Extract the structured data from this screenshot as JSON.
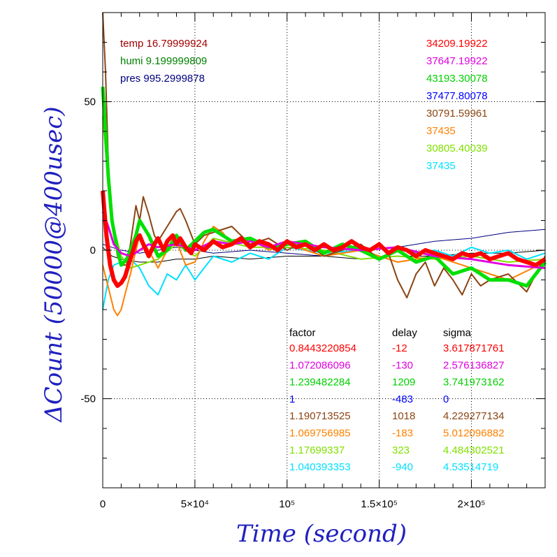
{
  "chart_data": {
    "type": "line",
    "xlabel": "Time (second)",
    "ylabel": "ΔCount (50000@400usec)",
    "xlim": [
      0,
      240000
    ],
    "ylim": [
      -80,
      80
    ],
    "grid": true,
    "x_ticks": [
      {
        "value": 0,
        "label": "0"
      },
      {
        "value": 50000,
        "label": "5×10⁴"
      },
      {
        "value": 100000,
        "label": "10⁵"
      },
      {
        "value": 150000,
        "label": "1.5×10⁵"
      },
      {
        "value": 200000,
        "label": "2×10⁵"
      }
    ],
    "y_ticks": [
      {
        "value": 50,
        "label": "50"
      },
      {
        "value": 0,
        "label": "0"
      },
      {
        "value": -50,
        "label": "-50"
      }
    ],
    "env_labels": [
      {
        "text": "temp 16.79999924",
        "color": "#a00000"
      },
      {
        "text": "humi 9.199999809",
        "color": "#008000"
      },
      {
        "text": "pres 995.2999878",
        "color": "#000080"
      }
    ],
    "count_labels": [
      {
        "text": "34209.19922",
        "color": "#ff0000"
      },
      {
        "text": "37647.19922",
        "color": "#e000e0"
      },
      {
        "text": "43193.30078",
        "color": "#00d000"
      },
      {
        "text": "37477.80078",
        "color": "#0000ff"
      },
      {
        "text": "30791.59961",
        "color": "#8b4513"
      },
      {
        "text": "37435",
        "color": "#ff8000"
      },
      {
        "text": "30805.40039",
        "color": "#80e000"
      },
      {
        "text": "37435",
        "color": "#00e0ff"
      }
    ],
    "table_headers": {
      "factor": "factor",
      "delay": "delay",
      "sigma": "sigma"
    },
    "table_rows": [
      {
        "factor": "0.8443220854",
        "delay": "-12",
        "sigma": "3.617871761",
        "color": "#ff0000"
      },
      {
        "factor": "1.072086096",
        "delay": "-130",
        "sigma": "2.576136827",
        "color": "#e000e0"
      },
      {
        "factor": "1.239482284",
        "delay": "1209",
        "sigma": "3.741973162",
        "color": "#00d000"
      },
      {
        "factor": "1",
        "delay": "-483",
        "sigma": "0",
        "color": "#0000ff"
      },
      {
        "factor": "1.190713525",
        "delay": "1018",
        "sigma": "4.229277134",
        "color": "#8b4513"
      },
      {
        "factor": "1.069756985",
        "delay": "-183",
        "sigma": "5.012096882",
        "color": "#ff8000"
      },
      {
        "factor": "1.17699337",
        "delay": "323",
        "sigma": "4.484302521",
        "color": "#80e000"
      },
      {
        "factor": "1.040393353",
        "delay": "-940",
        "sigma": "4.53514719",
        "color": "#00e0ff"
      }
    ],
    "series": [
      {
        "color": "#000000",
        "width": 1,
        "x": [
          0,
          5000,
          10000,
          20000,
          30000,
          40000,
          50000,
          60000,
          80000,
          100000,
          120000,
          140000,
          160000,
          180000,
          200000,
          220000,
          240000
        ],
        "y": [
          1,
          -2,
          -3,
          -4,
          -4,
          -3,
          -3,
          -2,
          -3,
          -2,
          -2,
          -3,
          -2,
          -2,
          -1,
          -1,
          0
        ]
      },
      {
        "color": "#000080",
        "width": 1,
        "x": [
          0,
          5000,
          10000,
          20000,
          30000,
          40000,
          60000,
          80000,
          100000,
          120000,
          140000,
          160000,
          180000,
          200000,
          220000,
          240000
        ],
        "y": [
          2,
          1,
          0,
          -1,
          0,
          1,
          -1,
          0,
          -1,
          -2,
          0,
          1,
          3,
          4,
          6,
          7
        ]
      },
      {
        "color": "#00e0ff",
        "width": 2,
        "x": [
          0,
          3000,
          6000,
          10000,
          15000,
          20000,
          25000,
          30000,
          35000,
          40000,
          45000,
          50000,
          55000,
          60000,
          70000,
          80000,
          90000,
          100000,
          120000,
          140000,
          160000,
          170000,
          180000,
          190000,
          200000,
          210000,
          220000,
          230000,
          240000
        ],
        "y": [
          -20,
          -10,
          -5,
          -4,
          -3,
          -6,
          -12,
          -15,
          -8,
          -10,
          -5,
          -10,
          -6,
          -2,
          -4,
          -1,
          -3,
          1,
          -1,
          0,
          1,
          -1,
          0,
          -2,
          1,
          -1,
          0,
          -3,
          -1
        ]
      },
      {
        "color": "#80e000",
        "width": 2,
        "x": [
          0,
          2000,
          5000,
          10000,
          15000,
          20000,
          30000,
          40000,
          50000,
          60000,
          80000,
          100000,
          120000,
          140000,
          160000,
          180000,
          200000,
          220000,
          240000
        ],
        "y": [
          45,
          30,
          10,
          -2,
          -6,
          -5,
          -3,
          2,
          -2,
          4,
          1,
          1,
          0,
          -3,
          -2,
          -3,
          -2,
          -4,
          -3
        ]
      },
      {
        "color": "#ff8000",
        "width": 2,
        "x": [
          0,
          2000,
          4000,
          6000,
          8000,
          10000,
          12000,
          15000,
          18000,
          20000,
          25000,
          30000,
          35000,
          40000,
          45000,
          50000,
          55000,
          60000,
          65000,
          70000,
          80000,
          90000,
          100000,
          120000,
          140000,
          160000,
          180000,
          200000,
          220000,
          240000
        ],
        "y": [
          -5,
          -10,
          -15,
          -20,
          -22,
          -20,
          -15,
          -8,
          0,
          5,
          0,
          -6,
          0,
          3,
          -5,
          -4,
          3,
          8,
          6,
          2,
          4,
          0,
          2,
          -2,
          0,
          -4,
          -2,
          -6,
          -10,
          -4
        ]
      },
      {
        "color": "#8b4513",
        "width": 2,
        "x": [
          0,
          1500,
          3000,
          5000,
          8000,
          10000,
          13000,
          15000,
          18000,
          20000,
          22000,
          25000,
          28000,
          30000,
          35000,
          40000,
          42000,
          45000,
          50000,
          55000,
          60000,
          70000,
          80000,
          90000,
          100000,
          110000,
          120000,
          130000,
          140000,
          150000,
          155000,
          160000,
          165000,
          170000,
          175000,
          180000,
          185000,
          190000,
          195000,
          200000,
          205000,
          210000,
          220000,
          230000,
          240000
        ],
        "y": [
          80,
          60,
          30,
          10,
          -2,
          -5,
          -5,
          2,
          15,
          10,
          18,
          12,
          5,
          3,
          8,
          13,
          14,
          10,
          2,
          5,
          6,
          8,
          2,
          4,
          0,
          3,
          -2,
          0,
          2,
          -3,
          -1,
          -10,
          -16,
          -8,
          -4,
          -12,
          -6,
          -10,
          -15,
          -8,
          -12,
          -10,
          -8,
          -14,
          -2
        ]
      },
      {
        "color": "#00e000",
        "width": 5,
        "x": [
          0,
          1500,
          3000,
          5000,
          8000,
          10000,
          13000,
          15000,
          18000,
          20000,
          25000,
          30000,
          35000,
          40000,
          45000,
          50000,
          55000,
          60000,
          70000,
          80000,
          90000,
          100000,
          110000,
          120000,
          130000,
          140000,
          150000,
          160000,
          170000,
          180000,
          190000,
          200000,
          210000,
          220000,
          230000,
          240000
        ],
        "y": [
          55,
          40,
          25,
          10,
          0,
          -5,
          -3,
          0,
          5,
          10,
          5,
          -2,
          0,
          5,
          0,
          3,
          6,
          7,
          3,
          4,
          1,
          2,
          3,
          -1,
          2,
          0,
          -3,
          0,
          -4,
          -2,
          -8,
          -6,
          -10,
          -10,
          -12,
          -4
        ]
      },
      {
        "color": "#e000e0",
        "width": 3,
        "x": [
          0,
          3000,
          6000,
          10000,
          15000,
          20000,
          25000,
          30000,
          40000,
          50000,
          60000,
          70000,
          80000,
          90000,
          100000,
          120000,
          140000,
          160000,
          180000,
          200000,
          220000,
          240000
        ],
        "y": [
          13,
          8,
          2,
          -1,
          -2,
          0,
          2,
          1,
          2,
          0,
          3,
          2,
          3,
          1,
          3,
          1,
          0,
          1,
          -2,
          -3,
          -5,
          -6
        ]
      },
      {
        "color": "#ff0000",
        "width": 6,
        "x": [
          0,
          2000,
          4000,
          6000,
          8000,
          10000,
          12000,
          15000,
          18000,
          20000,
          22000,
          25000,
          28000,
          30000,
          33000,
          35000,
          38000,
          40000,
          42000,
          45000,
          48000,
          50000,
          55000,
          60000,
          65000,
          70000,
          75000,
          80000,
          85000,
          90000,
          95000,
          100000,
          105000,
          110000,
          115000,
          120000,
          125000,
          130000,
          135000,
          140000,
          145000,
          150000,
          155000,
          160000,
          165000,
          170000,
          175000,
          180000,
          185000,
          190000,
          195000,
          200000,
          205000,
          210000,
          215000,
          220000,
          225000,
          230000,
          235000,
          240000
        ],
        "y": [
          20,
          5,
          -5,
          -10,
          -12,
          -11,
          -9,
          -3,
          3,
          5,
          2,
          -2,
          2,
          4,
          0,
          3,
          5,
          2,
          4,
          1,
          -1,
          2,
          0,
          3,
          1,
          2,
          4,
          1,
          3,
          2,
          0,
          3,
          1,
          2,
          0,
          2,
          0,
          1,
          3,
          1,
          0,
          2,
          -1,
          1,
          0,
          -2,
          0,
          -1,
          -2,
          -3,
          -1,
          -2,
          -1,
          -3,
          -2,
          -1,
          -3,
          -4,
          -5,
          -3
        ]
      }
    ]
  }
}
